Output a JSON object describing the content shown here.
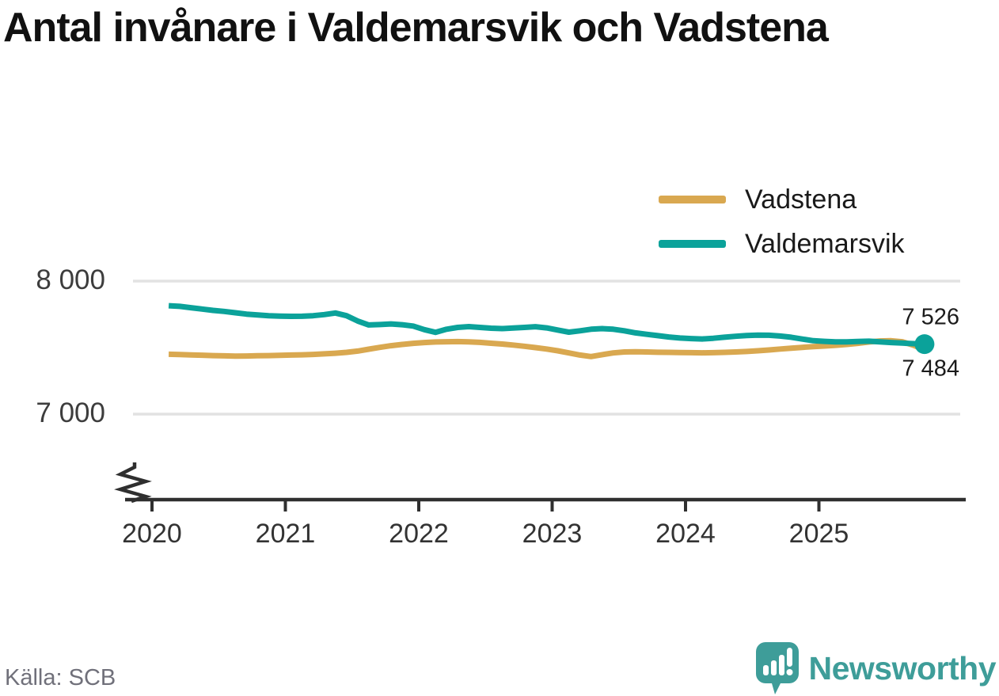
{
  "title": "Antal invånare i Valdemarsvik och Vadstena",
  "source": "Källa: SCB",
  "brand": {
    "name": "Newsworthy",
    "color": "#3e9d99"
  },
  "colors": {
    "vadstena": "#d9a850",
    "valdemarsvik": "#0ba29a",
    "grid": "#e2e2e2",
    "axis": "#2f2f2f",
    "title_text": "#111111",
    "tick_text": "#3d3d3d"
  },
  "legend": [
    {
      "label": "Vadstena",
      "color": "#d9a850"
    },
    {
      "label": "Valdemarsvik",
      "color": "#0ba29a"
    }
  ],
  "chart_data": {
    "type": "line",
    "title": "Antal invånare i Valdemarsvik och Vadstena",
    "x_unit": "year (monthly points)",
    "x_start": 2020.125,
    "x_step": 0.0833333,
    "x_ticks": [
      {
        "t": 2020,
        "label": "2020"
      },
      {
        "t": 2021,
        "label": "2021"
      },
      {
        "t": 2022,
        "label": "2022"
      },
      {
        "t": 2023,
        "label": "2023"
      },
      {
        "t": 2024,
        "label": "2024"
      },
      {
        "t": 2025,
        "label": "2025"
      }
    ],
    "y_ticks": [
      {
        "v": 8000,
        "label": "8 000"
      },
      {
        "v": 7000,
        "label": "7 000"
      }
    ],
    "y_axis_break": true,
    "grid": "horizontal-only",
    "legend_position": "top-right",
    "series": [
      {
        "name": "Vadstena",
        "color": "#d9a850",
        "values": [
          7450,
          7448,
          7445,
          7443,
          7440,
          7438,
          7436,
          7437,
          7439,
          7440,
          7442,
          7444,
          7446,
          7449,
          7453,
          7458,
          7464,
          7474,
          7488,
          7502,
          7514,
          7524,
          7532,
          7538,
          7542,
          7544,
          7545,
          7543,
          7539,
          7533,
          7527,
          7519,
          7510,
          7500,
          7489,
          7476,
          7460,
          7444,
          7433,
          7447,
          7460,
          7467,
          7469,
          7467,
          7465,
          7464,
          7463,
          7462,
          7461,
          7462,
          7464,
          7467,
          7471,
          7476,
          7482,
          7489,
          7496,
          7502,
          7508,
          7512,
          7517,
          7524,
          7532,
          7542,
          7550,
          7552,
          7544,
          7518,
          7484
        ]
      },
      {
        "name": "Valdemarsvik",
        "color": "#0ba29a",
        "end_dot": true,
        "values": [
          7815,
          7810,
          7800,
          7790,
          7780,
          7772,
          7762,
          7752,
          7745,
          7740,
          7737,
          7735,
          7736,
          7740,
          7748,
          7760,
          7740,
          7700,
          7670,
          7673,
          7678,
          7672,
          7662,
          7635,
          7615,
          7638,
          7652,
          7658,
          7652,
          7646,
          7643,
          7647,
          7652,
          7657,
          7648,
          7632,
          7616,
          7626,
          7638,
          7643,
          7638,
          7626,
          7611,
          7600,
          7590,
          7580,
          7572,
          7568,
          7565,
          7570,
          7578,
          7585,
          7591,
          7594,
          7593,
          7587,
          7578,
          7564,
          7552,
          7547,
          7543,
          7543,
          7546,
          7548,
          7543,
          7538,
          7534,
          7530,
          7526
        ]
      }
    ],
    "end_labels": [
      {
        "series": "Valdemarsvik",
        "value": 7526,
        "label": "7 526"
      },
      {
        "series": "Vadstena",
        "value": 7484,
        "label": "7 484"
      }
    ]
  }
}
